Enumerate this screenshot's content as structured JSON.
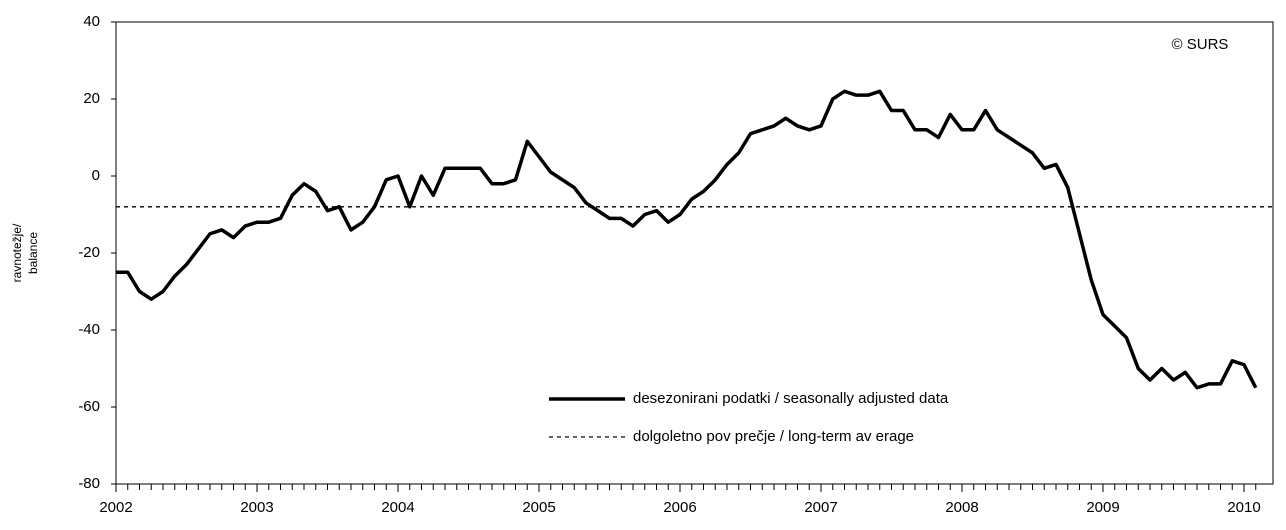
{
  "chart_data": {
    "type": "line",
    "annotation": "© SURS",
    "y_label": [
      "ravnotežje/",
      "balance"
    ],
    "categories": [
      "2002",
      null,
      null,
      null,
      null,
      null,
      null,
      null,
      null,
      null,
      null,
      null,
      "2003",
      null,
      null,
      null,
      null,
      null,
      null,
      null,
      null,
      null,
      null,
      null,
      "2004",
      null,
      null,
      null,
      null,
      null,
      null,
      null,
      null,
      null,
      null,
      null,
      "2005",
      null,
      null,
      null,
      null,
      null,
      null,
      null,
      null,
      null,
      null,
      null,
      "2006",
      null,
      null,
      null,
      null,
      null,
      null,
      null,
      null,
      null,
      null,
      null,
      "2007",
      null,
      null,
      null,
      null,
      null,
      null,
      null,
      null,
      null,
      null,
      null,
      "2008",
      null,
      null,
      null,
      null,
      null,
      null,
      null,
      null,
      null,
      null,
      null,
      "2009",
      null,
      null,
      null,
      null,
      null,
      null,
      null,
      null,
      null,
      null,
      null,
      "2010",
      null
    ],
    "series": [
      {
        "name": "desezonirani podatki / seasonally adjusted data",
        "color": "#000000",
        "values": [
          -25,
          -25,
          -30,
          -32,
          -30,
          -26,
          -23,
          -19,
          -15,
          -14,
          -16,
          -13,
          -12,
          -12,
          -11,
          -5,
          -2,
          -4,
          -9,
          -8,
          -14,
          -12,
          -8,
          -1,
          0,
          -8,
          0,
          -5,
          2,
          2,
          2,
          2,
          -2,
          -2,
          -1,
          9,
          5,
          1,
          -1,
          -3,
          -7,
          -9,
          -11,
          -11,
          -13,
          -10,
          -9,
          -12,
          -10,
          -6,
          -4,
          -1,
          3,
          6,
          11,
          12,
          13,
          15,
          13,
          12,
          13,
          20,
          22,
          21,
          21,
          22,
          17,
          17,
          12,
          12,
          10,
          16,
          12,
          12,
          17,
          12,
          10,
          8,
          6,
          2,
          3,
          -3,
          -15,
          -27,
          -36,
          -39,
          -42,
          -50,
          -53,
          -50,
          -53,
          -51,
          -55,
          -54,
          -54,
          -48,
          -49,
          -55
        ]
      }
    ],
    "average": {
      "name": "dolgoletno pov prečje / long-term av erage",
      "value": -8,
      "color": "#000000"
    },
    "ylim": [
      -80,
      40
    ],
    "yticks": [
      -80,
      -60,
      -40,
      -20,
      0,
      20,
      40
    ],
    "grid": false
  }
}
